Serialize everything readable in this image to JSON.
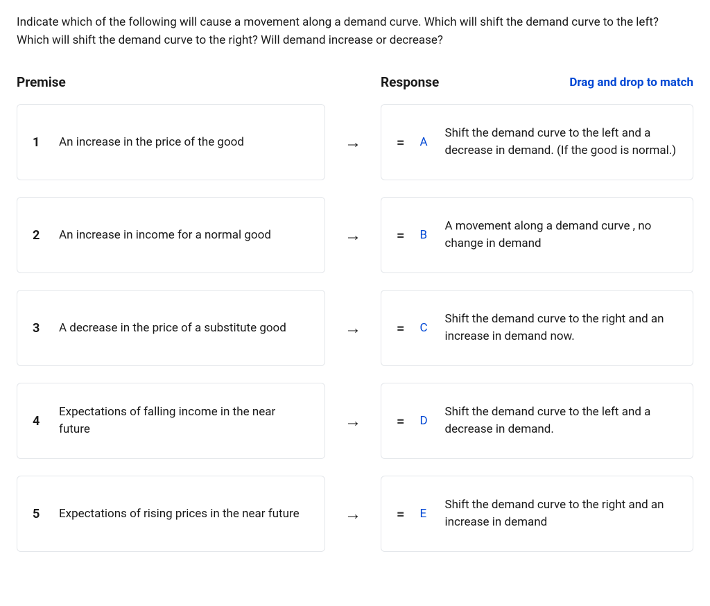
{
  "question": "Indicate which of the following will cause a movement along a demand curve. Which will shift the demand curve to the left? Which will shift the demand curve to the right? Will demand increase or decrease?",
  "headers": {
    "premise": "Premise",
    "response": "Response",
    "hint": "Drag and drop to match"
  },
  "glyphs": {
    "arrow": "→",
    "drag": "="
  },
  "rows": [
    {
      "num": "1",
      "premise": "An increase in the price of the good",
      "letter": "A",
      "response": "Shift the demand curve to the left and a decrease in demand. (If the good is normal.)"
    },
    {
      "num": "2",
      "premise": "An increase in income for a normal good",
      "letter": "B",
      "response": "A movement along a demand curve , no change in demand"
    },
    {
      "num": "3",
      "premise": "A decrease in the price of a substitute good",
      "letter": "C",
      "response": "Shift the demand curve to the right and an increase in demand now."
    },
    {
      "num": "4",
      "premise": "Expectations of falling income in the near future",
      "letter": "D",
      "response": "Shift the demand curve to the left and a decrease in demand."
    },
    {
      "num": "5",
      "premise": "Expectations of rising prices in the near future",
      "letter": "E",
      "response": "Shift the demand curve to the right and an increase in demand"
    }
  ],
  "style": {
    "border_color": "#e3e6ea",
    "accent_color": "#0047d4",
    "text_color": "#1a1a1a",
    "background": "#ffffff",
    "font_size_body": 17,
    "font_size_header": 19,
    "card_radius": 6,
    "row_gap": 24,
    "card_min_height": 110
  }
}
